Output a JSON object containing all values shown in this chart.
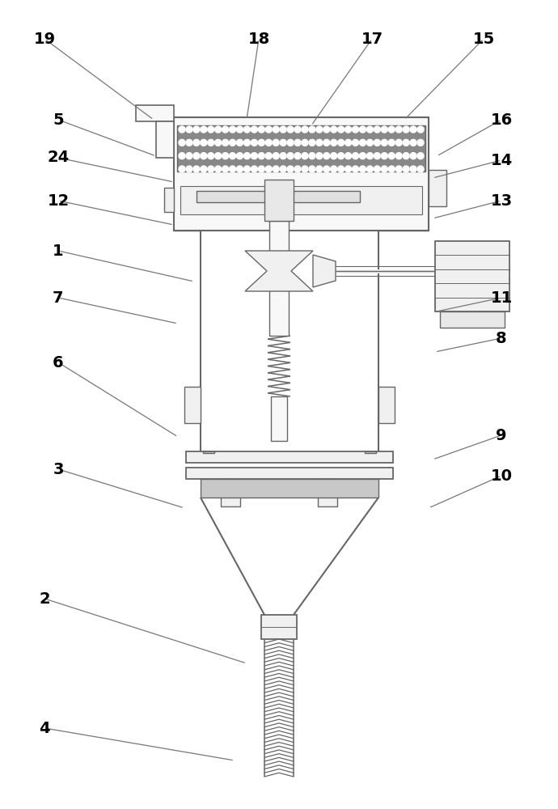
{
  "bg_color": "#ffffff",
  "line_color": "#666666",
  "label_color": "#000000",
  "label_fontsize": 14,
  "annotations": [
    [
      "19",
      55,
      48,
      190,
      148
    ],
    [
      "5",
      72,
      148,
      193,
      193
    ],
    [
      "24",
      72,
      195,
      215,
      225
    ],
    [
      "12",
      72,
      248,
      215,
      278
    ],
    [
      "1",
      72,
      310,
      240,
      348
    ],
    [
      "7",
      72,
      368,
      220,
      400
    ],
    [
      "6",
      72,
      448,
      220,
      540
    ],
    [
      "3",
      72,
      580,
      228,
      628
    ],
    [
      "2",
      55,
      740,
      305,
      820
    ],
    [
      "4",
      55,
      900,
      290,
      940
    ],
    [
      "15",
      598,
      48,
      500,
      148
    ],
    [
      "17",
      460,
      48,
      385,
      155
    ],
    [
      "18",
      320,
      48,
      305,
      148
    ],
    [
      "16",
      620,
      148,
      540,
      193
    ],
    [
      "14",
      620,
      198,
      535,
      220
    ],
    [
      "13",
      620,
      248,
      535,
      270
    ],
    [
      "11",
      620,
      368,
      540,
      385
    ],
    [
      "8",
      620,
      418,
      538,
      435
    ],
    [
      "9",
      620,
      538,
      535,
      568
    ],
    [
      "10",
      620,
      588,
      530,
      628
    ]
  ]
}
